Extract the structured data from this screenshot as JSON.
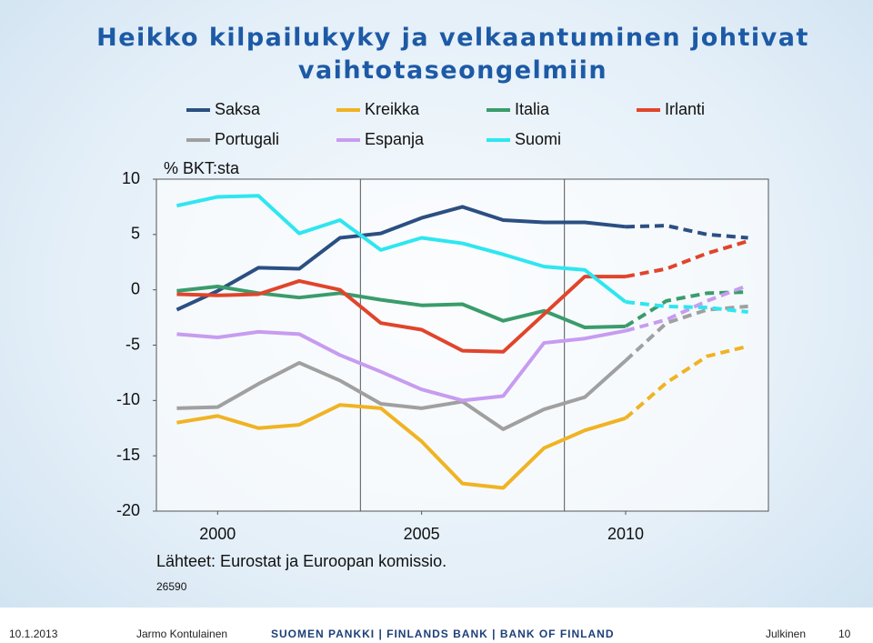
{
  "chart_data": {
    "type": "line",
    "title": "Heikko kilpailukyky ja velkaantuminen johtivat vaihtotaseongelmiin",
    "y_label": "% BKT:sta",
    "x": [
      1999,
      2000,
      2001,
      2002,
      2003,
      2004,
      2005,
      2006,
      2007,
      2008,
      2009,
      2010,
      2011,
      2012,
      2013
    ],
    "xlim": [
      1998.5,
      2013.5
    ],
    "xticks": [
      2000,
      2005,
      2010
    ],
    "ylim": [
      -20,
      10
    ],
    "yticks": [
      -20,
      -15,
      -10,
      -5,
      0,
      5,
      10
    ],
    "forecast_start": 2010,
    "series": [
      {
        "name": "Saksa",
        "color": "#2b4f82",
        "values": [
          -1.8,
          -0.1,
          2.0,
          1.9,
          4.7,
          5.1,
          6.5,
          7.5,
          6.3,
          6.1,
          6.1,
          5.7,
          5.8,
          5.0,
          4.7
        ]
      },
      {
        "name": "Kreikka",
        "color": "#f0b323",
        "values": [
          -12.0,
          -11.4,
          -12.5,
          -12.2,
          -10.4,
          -10.7,
          -13.7,
          -17.5,
          -17.9,
          -14.3,
          -12.7,
          -11.6,
          -8.4,
          -6.0,
          -5.1
        ]
      },
      {
        "name": "Italia",
        "color": "#3a9c6b",
        "values": [
          -0.1,
          0.3,
          -0.3,
          -0.7,
          -0.3,
          -0.9,
          -1.4,
          -1.3,
          -2.8,
          -1.9,
          -3.4,
          -3.3,
          -1.0,
          -0.3,
          -0.2
        ]
      },
      {
        "name": "Irlanti",
        "color": "#e0452b",
        "values": [
          -0.4,
          -0.5,
          -0.4,
          0.8,
          0.0,
          -3.0,
          -3.6,
          -5.5,
          -5.6,
          -2.2,
          1.2,
          1.2,
          1.9,
          3.3,
          4.4
        ]
      },
      {
        "name": "Portugali",
        "color": "#a0a0a0",
        "values": [
          -10.7,
          -10.6,
          -8.5,
          -6.6,
          -8.2,
          -10.3,
          -10.7,
          -10.1,
          -12.6,
          -10.8,
          -9.7,
          -6.4,
          -3.0,
          -1.8,
          -1.5
        ]
      },
      {
        "name": "Espanja",
        "color": "#c79cf0",
        "values": [
          -4.0,
          -4.3,
          -3.8,
          -4.0,
          -5.9,
          -7.4,
          -9.0,
          -10.0,
          -9.6,
          -4.8,
          -4.4,
          -3.7,
          -2.7,
          -1.0,
          0.4
        ]
      },
      {
        "name": "Suomi",
        "color": "#2ee6f0",
        "values": [
          7.6,
          8.4,
          8.5,
          5.1,
          6.3,
          3.6,
          4.7,
          4.2,
          3.2,
          2.1,
          1.8,
          -1.1,
          -1.5,
          -1.6,
          -2.0
        ]
      }
    ],
    "source": "Lähteet: Eurostat ja Euroopan komissio.",
    "code": "26590"
  },
  "footer": {
    "date": "10.1.2013",
    "author": "Jarmo Kontulainen",
    "organization": "SUOMEN PANKKI | FINLANDS BANK | BANK OF FINLAND",
    "classification": "Julkinen",
    "page": "10"
  }
}
